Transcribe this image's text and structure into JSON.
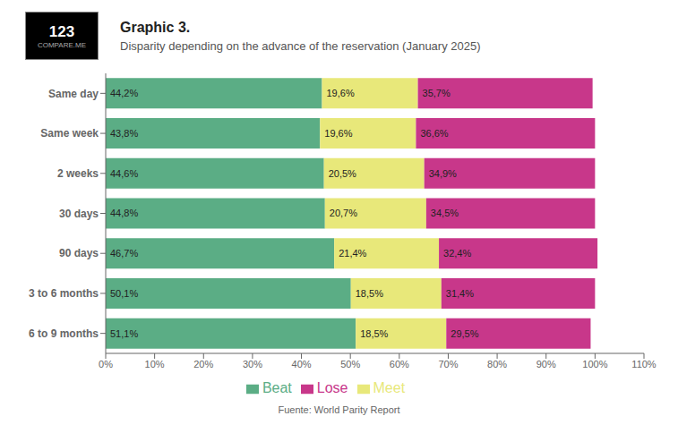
{
  "chart_data": {
    "type": "bar",
    "orientation": "horizontal",
    "stacked": true,
    "data_labels": true,
    "grid": false,
    "legend": "bottom",
    "title": "Graphic 3.",
    "subtitle": "Disparity depending on the advance of the reservation (January 2025)",
    "annotations": [
      "123",
      "COMPARE.ME",
      "Fuente: World Parity Report"
    ],
    "categories": [
      "Same day",
      "Same week",
      "2 weeks",
      "30 days",
      "90 days",
      "3 to 6 months",
      "6 to 9 months"
    ],
    "series": [
      {
        "name": "Beat",
        "color": "#5BAD85",
        "values": [
          44.2,
          43.8,
          44.6,
          44.8,
          46.7,
          50.1,
          51.1
        ],
        "value_labels": [
          "44,2%",
          "43,8%",
          "44,6%",
          "44,8%",
          "46,7%",
          "50,1%",
          "51,1%"
        ]
      },
      {
        "name": "Meet",
        "color": "#E8E87A",
        "values": [
          19.6,
          19.6,
          20.5,
          20.7,
          21.4,
          18.5,
          18.5
        ],
        "value_labels": [
          "19,6%",
          "19,6%",
          "20,5%",
          "20,7%",
          "21,4%",
          "18,5%",
          "18,5%"
        ]
      },
      {
        "name": "Lose",
        "color": "#C8378A",
        "values": [
          35.7,
          36.6,
          34.9,
          34.5,
          32.4,
          31.4,
          29.5
        ],
        "value_labels": [
          "35,7%",
          "36,6%",
          "34,9%",
          "34,5%",
          "32,4%",
          "31,4%",
          "29,5%"
        ]
      }
    ],
    "xlim": [
      0,
      110
    ],
    "xticks": [
      {
        "value": 0,
        "label": "0%"
      },
      {
        "value": 10,
        "label": "10%"
      },
      {
        "value": 20,
        "label": "20%"
      },
      {
        "value": 30,
        "label": "30%"
      },
      {
        "value": 40,
        "label": "40%"
      },
      {
        "value": 50,
        "label": "50%"
      },
      {
        "value": 60,
        "label": "60%"
      },
      {
        "value": 70,
        "label": "70%"
      },
      {
        "value": 80,
        "label": "80%"
      },
      {
        "value": 90,
        "label": "90%"
      },
      {
        "value": 100,
        "label": "100%"
      },
      {
        "value": 110,
        "label": "110%"
      }
    ]
  }
}
